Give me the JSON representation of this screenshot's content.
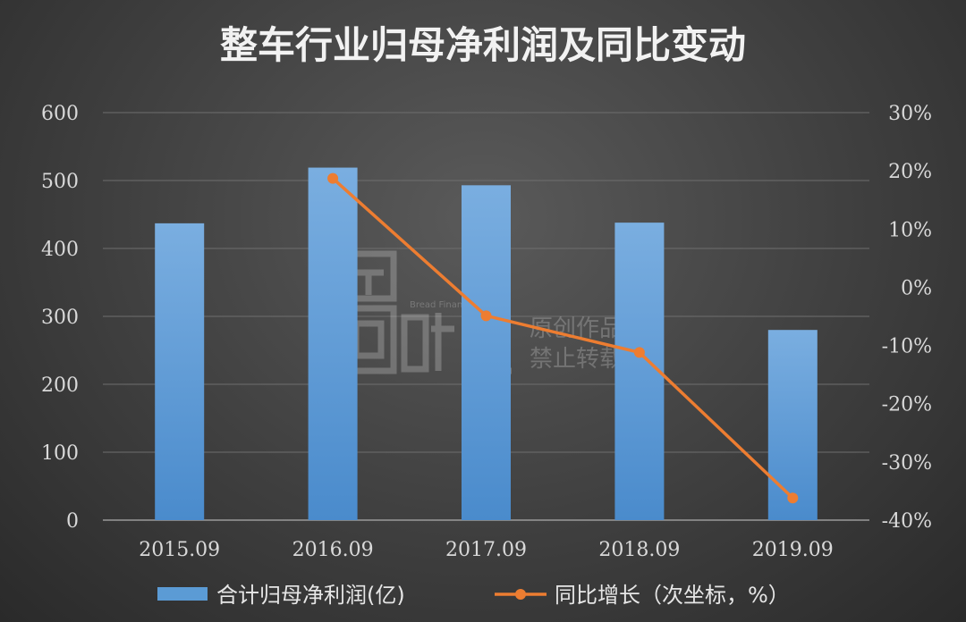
{
  "chart_data": {
    "type": "bar",
    "title": "整车行业归母净利润及同比变动",
    "categories": [
      "2015.09",
      "2016.09",
      "2017.09",
      "2018.09",
      "2019.09"
    ],
    "series": [
      {
        "name": "合计归母净利润(亿)",
        "type": "bar",
        "axis": "left",
        "color": "#5b9bd5",
        "values": [
          437,
          519,
          493,
          438,
          280
        ]
      },
      {
        "name": "同比增长（次坐标，%）",
        "type": "line",
        "axis": "right",
        "color": "#ed7d31",
        "values": [
          null,
          18.7,
          -4.9,
          -11.2,
          -36.2
        ]
      }
    ],
    "y_left": {
      "lim": [
        0,
        600
      ],
      "ticks": [
        "0",
        "100",
        "200",
        "300",
        "400",
        "500",
        "600"
      ]
    },
    "y_right": {
      "lim": [
        -40,
        30
      ],
      "ticks": [
        "-40%",
        "-30%",
        "-20%",
        "-10%",
        "0%",
        "10%",
        "20%",
        "30%"
      ]
    },
    "grid": true,
    "legend": "bottom"
  },
  "watermark": {
    "logo_text": "面包财经",
    "brand_en": "Bread Finance",
    "note_line1": "原创作品",
    "note_line2": "禁止转载"
  }
}
